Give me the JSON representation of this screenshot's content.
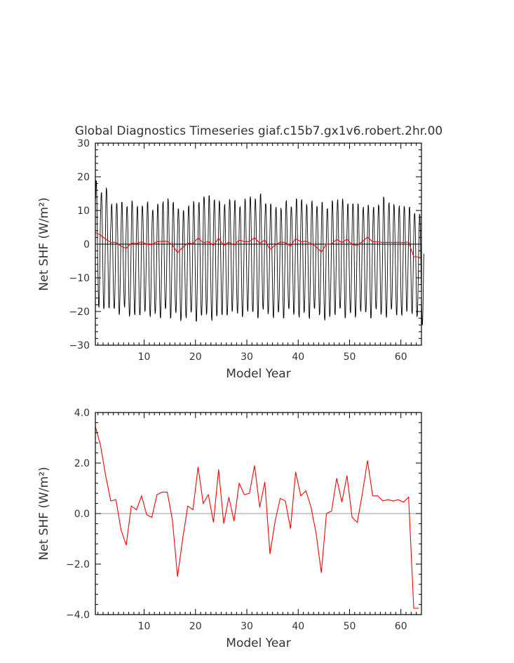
{
  "title": "Global Diagnostics Timeseries giaf.c15b7.gx1v6.robert.2hr.00",
  "chart_data": [
    {
      "type": "line",
      "title": "Global Diagnostics Timeseries giaf.c15b7.gx1v6.robert.2hr.00",
      "xlabel": "Model Year",
      "ylabel": "Net SHF (W/m²)",
      "xlim": [
        0.5,
        64
      ],
      "ylim": [
        -30,
        30
      ],
      "xticks": [
        10,
        20,
        30,
        40,
        50,
        60
      ],
      "xtick_labels": [
        "10",
        "20",
        "30",
        "40",
        "50",
        "60"
      ],
      "yticks": [
        -30,
        -20,
        -10,
        0,
        10,
        20,
        30
      ],
      "ytick_labels": [
        "−30",
        "−20",
        "−10",
        "0",
        "10",
        "20",
        "30"
      ],
      "zero_line": true,
      "grid": false,
      "series": [
        {
          "color": "#000000",
          "kind": "monthly",
          "annual_max": [
            19.0,
            16.0,
            17.0,
            12.0,
            13.0,
            12.5,
            12.0,
            13.0,
            11.5,
            12.0,
            12.5,
            11.0,
            12.0,
            13.0,
            14.0,
            12.5,
            11.5,
            10.0,
            12.0,
            13.0,
            12.5,
            15.0,
            14.5,
            14.0,
            13.0,
            12.0,
            14.0,
            13.0,
            12.0,
            13.5,
            14.5,
            14.0,
            15.0,
            13.0,
            12.0,
            11.5,
            11.0,
            13.0,
            12.0,
            13.5,
            14.0,
            12.0,
            13.0,
            12.0,
            12.5,
            11.5,
            13.0,
            13.5,
            14.0,
            12.0,
            13.0,
            12.0,
            11.5,
            12.0,
            11.0,
            12.5,
            14.0,
            13.0,
            12.0,
            11.5,
            12.0,
            11.0,
            10.0,
            9.0
          ],
          "annual_min": [
            -19.0,
            -20.0,
            -19.0,
            -20.0,
            -21.0,
            -19.0,
            -22.0,
            -21.0,
            -22.0,
            -20.0,
            -22.0,
            -21.0,
            -22.0,
            -20.0,
            -22.0,
            -21.0,
            -23.0,
            -22.0,
            -21.0,
            -23.0,
            -22.0,
            -21.0,
            -23.0,
            -22.0,
            -21.0,
            -22.0,
            -20.0,
            -21.0,
            -22.0,
            -20.0,
            -21.0,
            -22.0,
            -20.0,
            -21.0,
            -22.0,
            -21.0,
            -22.0,
            -20.0,
            -21.0,
            -22.0,
            -21.0,
            -22.0,
            -20.0,
            -21.0,
            -23.0,
            -22.0,
            -21.0,
            -20.0,
            -22.0,
            -21.0,
            -22.0,
            -20.0,
            -21.0,
            -22.0,
            -20.0,
            -21.0,
            -22.0,
            -20.0,
            -21.0,
            -22.0,
            -20.0,
            -21.0,
            -22.0,
            -24.0
          ]
        },
        {
          "color": "#ff0000",
          "kind": "annual",
          "x": [
            0.5,
            1.5,
            2.5,
            3.5,
            4.5,
            5.5,
            6.5,
            7.5,
            8.5,
            9.5,
            10.5,
            11.5,
            12.5,
            13.5,
            14.5,
            15.5,
            16.5,
            17.5,
            18.5,
            19.5,
            20.5,
            21.5,
            22.5,
            23.5,
            24.5,
            25.5,
            26.5,
            27.5,
            28.5,
            29.5,
            30.5,
            31.5,
            32.5,
            33.5,
            34.5,
            35.5,
            36.5,
            37.5,
            38.5,
            39.5,
            40.5,
            41.5,
            42.5,
            43.5,
            44.5,
            45.5,
            46.5,
            47.5,
            48.5,
            49.5,
            50.5,
            51.5,
            52.5,
            53.5,
            54.5,
            55.5,
            56.5,
            57.5,
            58.5,
            59.5,
            60.5,
            61.5,
            62.5,
            63.5
          ],
          "values": [
            3.45,
            2.7,
            1.5,
            0.5,
            0.55,
            -0.65,
            -1.25,
            0.3,
            0.15,
            0.7,
            -0.05,
            -0.15,
            0.75,
            0.85,
            0.85,
            -0.25,
            -2.5,
            -1.0,
            0.3,
            0.15,
            1.85,
            0.4,
            0.75,
            -0.35,
            1.75,
            -0.4,
            0.65,
            -0.3,
            1.2,
            0.75,
            0.8,
            1.9,
            0.25,
            1.25,
            -1.6,
            -0.3,
            0.6,
            0.5,
            -0.6,
            1.65,
            0.7,
            0.9,
            0.25,
            -0.8,
            -2.35,
            0.0,
            0.1,
            1.4,
            0.45,
            1.5,
            -0.15,
            -0.35,
            0.8,
            2.1,
            0.7,
            0.7,
            0.5,
            0.55,
            0.5,
            0.55,
            0.45,
            0.65,
            -3.75,
            -3.75
          ]
        }
      ]
    },
    {
      "type": "line",
      "title": "",
      "xlabel": "Model Year",
      "ylabel": "Net SHF (W/m²)",
      "xlim": [
        0.5,
        64
      ],
      "ylim": [
        -4,
        4
      ],
      "xticks": [
        10,
        20,
        30,
        40,
        50,
        60
      ],
      "xtick_labels": [
        "10",
        "20",
        "30",
        "40",
        "50",
        "60"
      ],
      "yticks": [
        -4,
        -2,
        0,
        2,
        4
      ],
      "ytick_labels": [
        "−4.0",
        "−2.0",
        "0.0",
        "2.0",
        "4.0"
      ],
      "zero_line": true,
      "grid": false,
      "series": [
        {
          "color": "#ff0000",
          "kind": "annual",
          "x": [
            0.5,
            1.5,
            2.5,
            3.5,
            4.5,
            5.5,
            6.5,
            7.5,
            8.5,
            9.5,
            10.5,
            11.5,
            12.5,
            13.5,
            14.5,
            15.5,
            16.5,
            17.5,
            18.5,
            19.5,
            20.5,
            21.5,
            22.5,
            23.5,
            24.5,
            25.5,
            26.5,
            27.5,
            28.5,
            29.5,
            30.5,
            31.5,
            32.5,
            33.5,
            34.5,
            35.5,
            36.5,
            37.5,
            38.5,
            39.5,
            40.5,
            41.5,
            42.5,
            43.5,
            44.5,
            45.5,
            46.5,
            47.5,
            48.5,
            49.5,
            50.5,
            51.5,
            52.5,
            53.5,
            54.5,
            55.5,
            56.5,
            57.5,
            58.5,
            59.5,
            60.5,
            61.5,
            62.5,
            63.5
          ],
          "values": [
            3.45,
            2.7,
            1.5,
            0.5,
            0.55,
            -0.65,
            -1.25,
            0.3,
            0.15,
            0.7,
            -0.05,
            -0.15,
            0.75,
            0.85,
            0.85,
            -0.25,
            -2.5,
            -1.0,
            0.3,
            0.15,
            1.85,
            0.4,
            0.75,
            -0.35,
            1.75,
            -0.4,
            0.65,
            -0.3,
            1.2,
            0.75,
            0.8,
            1.9,
            0.25,
            1.25,
            -1.6,
            -0.3,
            0.6,
            0.5,
            -0.6,
            1.65,
            0.7,
            0.9,
            0.25,
            -0.8,
            -2.35,
            0.0,
            0.1,
            1.4,
            0.45,
            1.5,
            -0.15,
            -0.35,
            0.8,
            2.1,
            0.7,
            0.7,
            0.5,
            0.55,
            0.5,
            0.55,
            0.45,
            0.65,
            -3.75,
            -3.75
          ]
        }
      ]
    }
  ]
}
